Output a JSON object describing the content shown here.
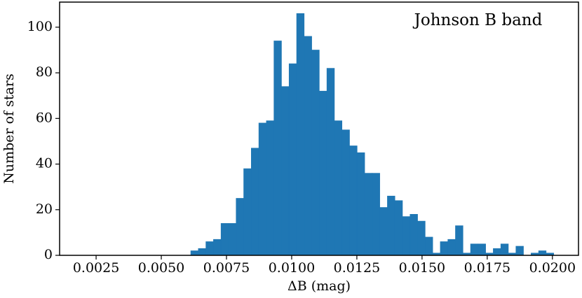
{
  "chart_data": {
    "type": "histogram",
    "annotation": "Johnson B band",
    "xlabel": "ΔB  (mag)",
    "ylabel": "Number of stars",
    "color": "#1f77b4",
    "bins": [
      0.0012,
      0.00149,
      0.00178,
      0.00207,
      0.00236,
      0.00265,
      0.00294,
      0.00323,
      0.00352,
      0.00381,
      0.0041,
      0.00439,
      0.00468,
      0.00497,
      0.00526,
      0.00555,
      0.00584,
      0.00613,
      0.00642,
      0.00671,
      0.007,
      0.00729,
      0.00758,
      0.00787,
      0.00816,
      0.00845,
      0.00874,
      0.00903,
      0.00932,
      0.00961,
      0.0099,
      0.01019,
      0.01048,
      0.01077,
      0.01106,
      0.01135,
      0.01164,
      0.01193,
      0.01222,
      0.01251,
      0.0128,
      0.01309,
      0.01338,
      0.01367,
      0.01396,
      0.01425,
      0.01454,
      0.01483,
      0.01512,
      0.01541,
      0.0157,
      0.01599,
      0.01628,
      0.01657,
      0.01686,
      0.01715,
      0.01744,
      0.01773,
      0.01802,
      0.01831,
      0.0186,
      0.01889,
      0.01918,
      0.01947,
      0.01976,
      0.02005
    ],
    "values": [
      0,
      0,
      0,
      0,
      0,
      0,
      0,
      0,
      0,
      0,
      0,
      0,
      0,
      0,
      0,
      0,
      0,
      2,
      3,
      6,
      7,
      14,
      14,
      25,
      38,
      47,
      58,
      59,
      94,
      74,
      84,
      106,
      96,
      90,
      72,
      82,
      59,
      55,
      48,
      45,
      36,
      36,
      21,
      26,
      24,
      17,
      18,
      15,
      8,
      1,
      6,
      7,
      13,
      1,
      5,
      5,
      1,
      3,
      5,
      1,
      4,
      0,
      1,
      2,
      1
    ],
    "xlim": [
      0.0011,
      0.021
    ],
    "ylim": [
      0,
      111
    ],
    "xticks": [
      0.0025,
      {
        "value": 0.005,
        "label": "0.0050"
      },
      0.0075,
      {
        "value": 0.01,
        "label": "0.0100"
      },
      0.0125,
      {
        "value": 0.015,
        "label": "0.0150"
      },
      0.0175,
      {
        "value": 0.02,
        "label": "0.0200"
      }
    ],
    "yticks": [
      0,
      20,
      40,
      60,
      80,
      100
    ]
  }
}
